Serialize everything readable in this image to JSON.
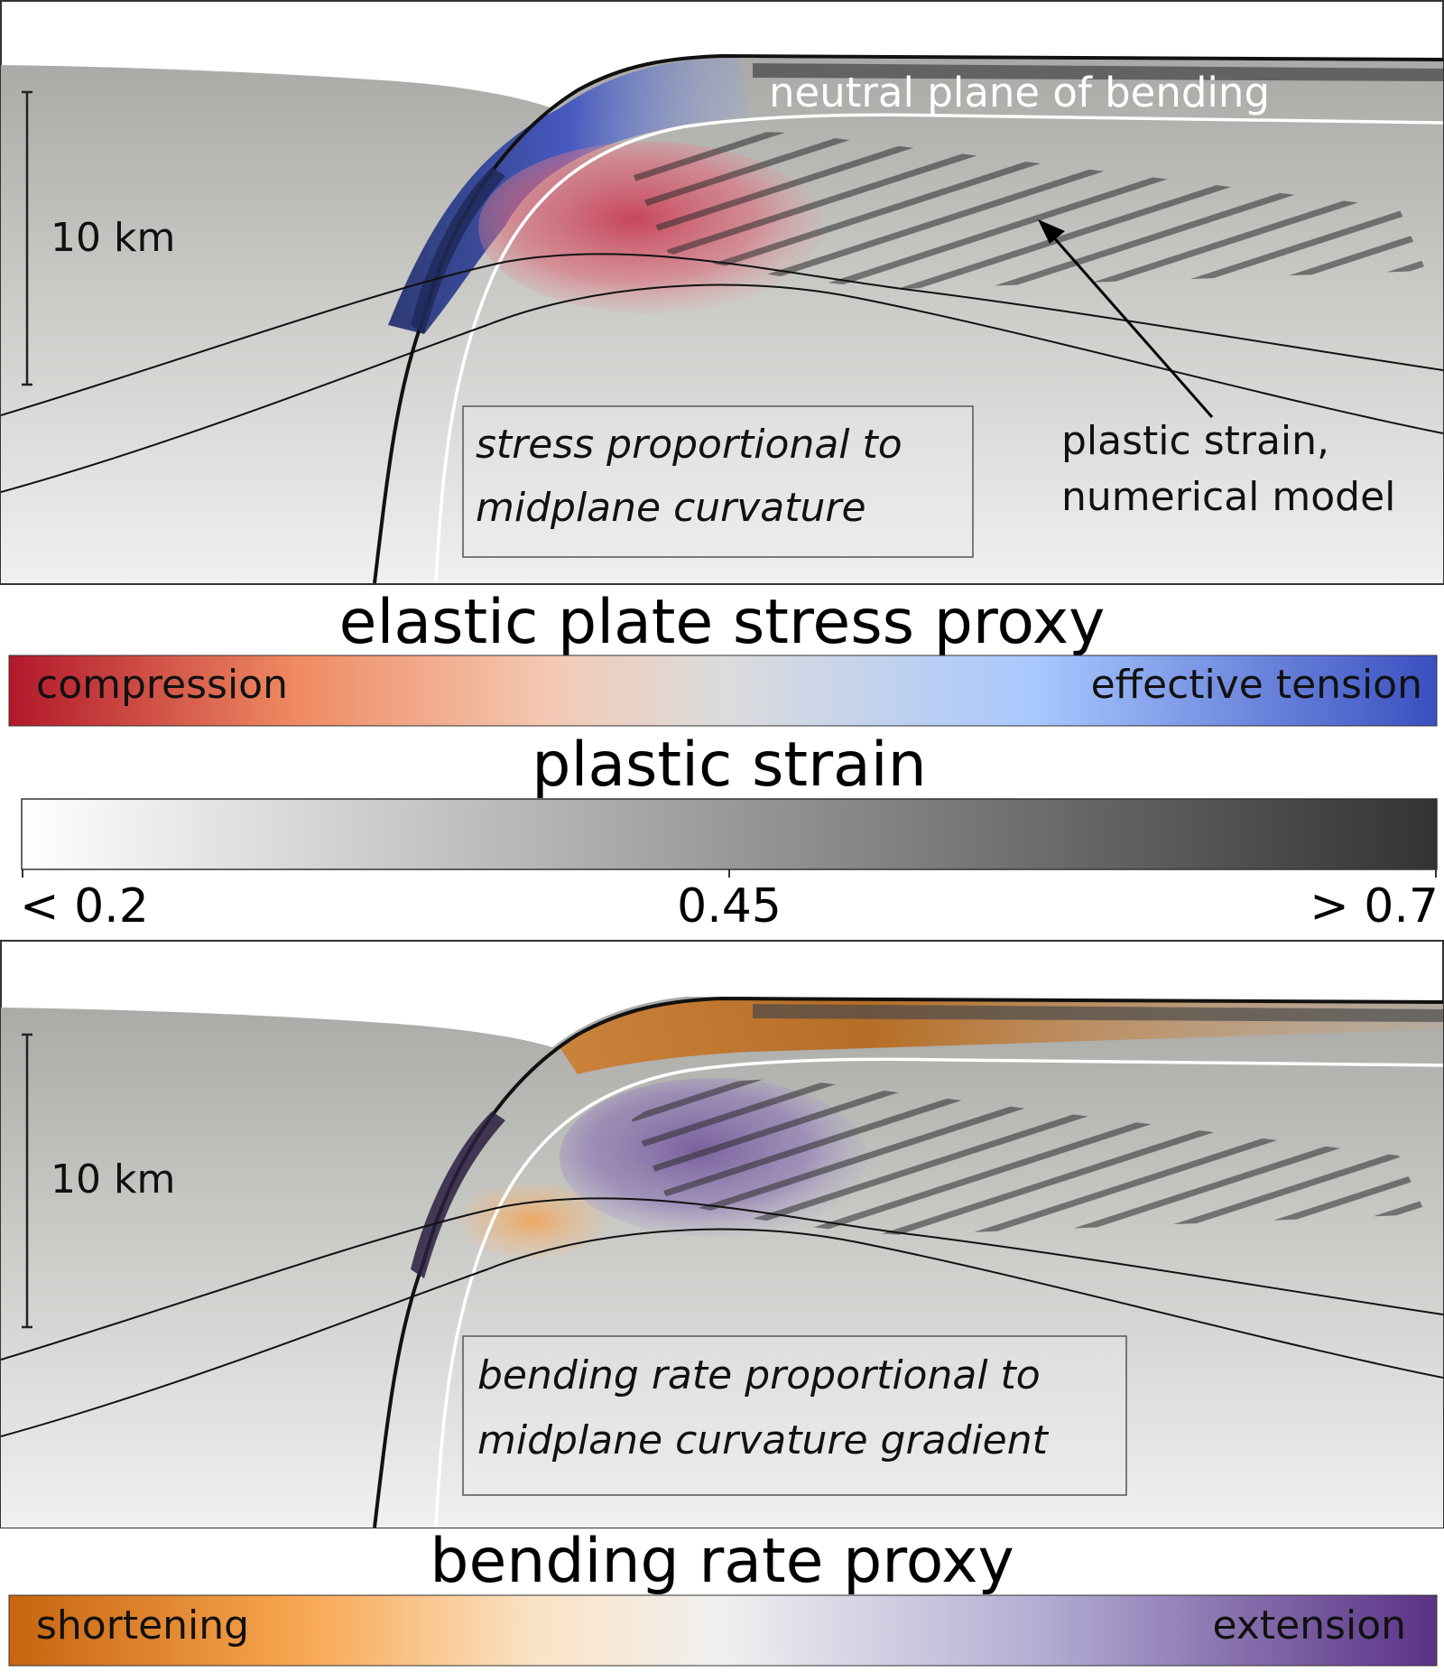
{
  "panel_top": {
    "scale_label": "10 km",
    "neutral_label": "neutral plane of bending",
    "box_lines": [
      "stress proportional to",
      "midplane curvature"
    ],
    "annotation_lines": [
      "plastic strain,",
      "numerical model"
    ]
  },
  "stress_legend": {
    "title": "elastic plate stress proxy",
    "left_label": "compression",
    "right_label": "effective tension",
    "colors": [
      "#b2182b",
      "#ef8a62",
      "#f4c9b4",
      "#dddddd",
      "#a8c8ff",
      "#3a4fc0"
    ]
  },
  "strain_legend": {
    "title": "plastic strain",
    "ticks": [
      "< 0.2",
      "0.45",
      "> 0.7"
    ],
    "colors": [
      "#ffffff",
      "#333333"
    ]
  },
  "panel_bottom": {
    "scale_label": "10 km",
    "box_lines": [
      "bending rate proportional to",
      "midplane curvature gradient"
    ]
  },
  "rate_legend": {
    "title": "bending rate proxy",
    "left_label": "shortening",
    "right_label": "extension",
    "colors": [
      "#c8640e",
      "#f7a54f",
      "#fbe3c6",
      "#eeeeee",
      "#b4aed4",
      "#5a3286"
    ]
  }
}
